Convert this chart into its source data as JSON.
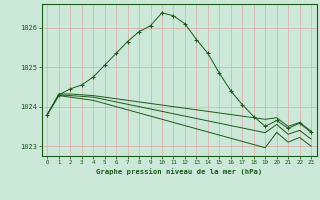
{
  "title": "Graphe pression niveau de la mer (hPa)",
  "bg_color": "#cce8d8",
  "grid_color": "#ddaaaa",
  "line_color": "#1a5c1a",
  "xlim": [
    -0.5,
    23.5
  ],
  "ylim": [
    1022.75,
    1026.6
  ],
  "yticks": [
    1023,
    1024,
    1025,
    1026
  ],
  "xticks": [
    0,
    1,
    2,
    3,
    4,
    5,
    6,
    7,
    8,
    9,
    10,
    11,
    12,
    13,
    14,
    15,
    16,
    17,
    18,
    19,
    20,
    21,
    22,
    23
  ],
  "series": [
    {
      "x": [
        0,
        1,
        2,
        3,
        4,
        5,
        6,
        7,
        8,
        9,
        10,
        11,
        12,
        13,
        14,
        15,
        16,
        17,
        18,
        19,
        20,
        21,
        22,
        23
      ],
      "y": [
        1023.8,
        1024.3,
        1024.45,
        1024.55,
        1024.75,
        1025.05,
        1025.35,
        1025.65,
        1025.9,
        1026.05,
        1026.38,
        1026.3,
        1026.1,
        1025.7,
        1025.35,
        1024.85,
        1024.4,
        1024.05,
        1023.75,
        1023.5,
        1023.65,
        1023.45,
        1023.58,
        1023.35
      ],
      "marker": true
    },
    {
      "x": [
        0,
        1,
        2,
        3,
        4,
        5,
        6,
        7,
        8,
        9,
        10,
        11,
        12,
        13,
        14,
        15,
        16,
        17,
        18,
        19,
        20,
        21,
        22,
        23
      ],
      "y": [
        1023.8,
        1024.32,
        1024.32,
        1024.3,
        1024.28,
        1024.24,
        1024.2,
        1024.16,
        1024.12,
        1024.08,
        1024.04,
        1024.0,
        1023.96,
        1023.92,
        1023.88,
        1023.84,
        1023.8,
        1023.76,
        1023.72,
        1023.68,
        1023.72,
        1023.5,
        1023.6,
        1023.38
      ],
      "marker": false
    },
    {
      "x": [
        0,
        1,
        2,
        3,
        4,
        5,
        6,
        7,
        8,
        9,
        10,
        11,
        12,
        13,
        14,
        15,
        16,
        17,
        18,
        19,
        20,
        21,
        22,
        23
      ],
      "y": [
        1023.8,
        1024.3,
        1024.28,
        1024.26,
        1024.24,
        1024.18,
        1024.12,
        1024.06,
        1024.0,
        1023.94,
        1023.88,
        1023.82,
        1023.76,
        1023.7,
        1023.64,
        1023.58,
        1023.52,
        1023.46,
        1023.4,
        1023.34,
        1023.55,
        1023.3,
        1023.4,
        1023.18
      ],
      "marker": false
    },
    {
      "x": [
        0,
        1,
        2,
        3,
        4,
        5,
        6,
        7,
        8,
        9,
        10,
        11,
        12,
        13,
        14,
        15,
        16,
        17,
        18,
        19,
        20,
        21,
        22,
        23
      ],
      "y": [
        1023.8,
        1024.28,
        1024.24,
        1024.2,
        1024.16,
        1024.08,
        1024.0,
        1023.92,
        1023.84,
        1023.76,
        1023.68,
        1023.6,
        1023.52,
        1023.44,
        1023.36,
        1023.28,
        1023.2,
        1023.12,
        1023.04,
        1022.96,
        1023.35,
        1023.1,
        1023.22,
        1023.0
      ],
      "marker": false
    }
  ]
}
